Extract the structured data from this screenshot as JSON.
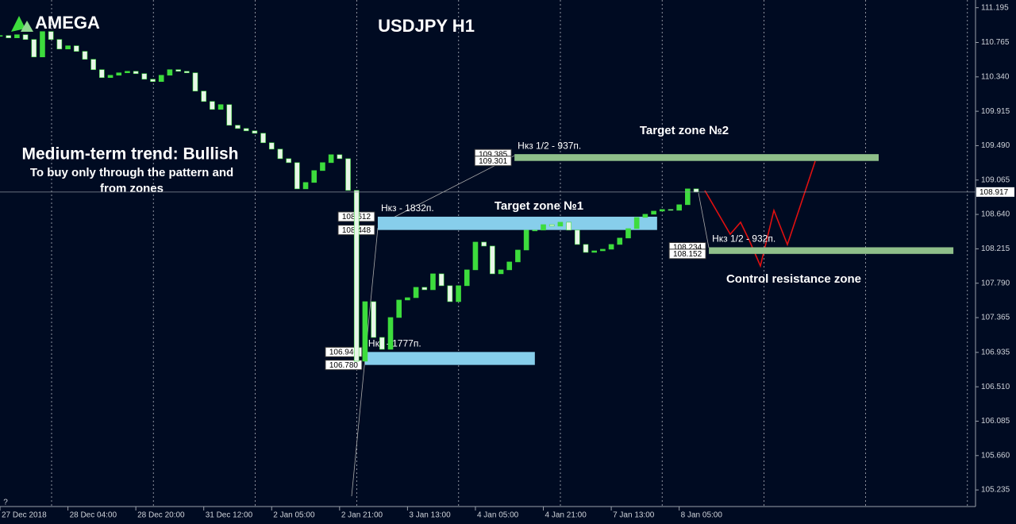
{
  "chart_data": {
    "type": "candlestick",
    "title": "USDJPY H1",
    "brand": "AMEGA",
    "annotations": [
      "Medium-term trend: Bullish",
      "To buy only through the pattern  and",
      "from zones",
      "Target zone №2",
      "Target zone №1",
      "Control resistance zone"
    ],
    "close": [
      110.851,
      110.822,
      110.861,
      110.802,
      110.586,
      110.9,
      110.802,
      110.684,
      110.724,
      110.655,
      110.557,
      110.429,
      110.331,
      110.36,
      110.39,
      110.409,
      110.38,
      110.311,
      110.282,
      110.36,
      110.429,
      110.409,
      110.39,
      110.164,
      110.036,
      109.938,
      109.997,
      109.742,
      109.702,
      109.673,
      109.643,
      109.526,
      109.447,
      109.329,
      109.28,
      108.956,
      109.035,
      109.182,
      109.28,
      109.378,
      109.329,
      108.937,
      106.826,
      107.562,
      107.12,
      106.973,
      107.366,
      107.582,
      107.611,
      107.739,
      107.709,
      107.906,
      107.759,
      107.562,
      107.759,
      107.955,
      108.298,
      108.249,
      107.906,
      107.955,
      108.053,
      108.2,
      108.446,
      108.446,
      108.514,
      108.495,
      108.544,
      108.446,
      108.269,
      108.171,
      108.19,
      108.21,
      108.269,
      108.348,
      108.465,
      108.603,
      108.642,
      108.681,
      108.701,
      108.691,
      108.76,
      108.956,
      108.917
    ],
    "up_color": "#3ddc3d",
    "down_color": "#e8f5e8",
    "xlim": [
      0,
      115
    ],
    "xticks": [
      {
        "value": 0,
        "label": "27 Dec 2018"
      },
      {
        "value": 8,
        "label": "28 Dec 04:00"
      },
      {
        "value": 16,
        "label": "28 Dec 20:00"
      },
      {
        "value": 24,
        "label": "31 Dec 12:00"
      },
      {
        "value": 32,
        "label": "2 Jan 05:00"
      },
      {
        "value": 40,
        "label": "2 Jan 21:00"
      },
      {
        "value": 48,
        "label": "3 Jan 13:00"
      },
      {
        "value": 56,
        "label": "4 Jan 05:00"
      },
      {
        "value": 64,
        "label": "4 Jan 21:00"
      },
      {
        "value": 72,
        "label": "7 Jan 13:00"
      },
      {
        "value": 80,
        "label": "8 Jan 05:00"
      }
    ],
    "ylim": [
      105.03,
      111.29
    ],
    "yticks": [
      111.195,
      110.765,
      {
        "value": 110.34,
        "label": "110.340"
      },
      109.915,
      {
        "value": 109.49,
        "label": "109.490"
      },
      109.065,
      {
        "value": 108.64,
        "label": "108.640"
      },
      108.215,
      {
        "value": 107.79,
        "label": "107.790"
      },
      107.365,
      106.935,
      {
        "value": 106.51,
        "label": "106.510"
      },
      106.085,
      {
        "value": 105.66,
        "label": "105.660"
      },
      105.235
    ],
    "zones": [
      {
        "label": "Нкз 1/2 - 937п.",
        "top": 109.385,
        "bottom": 109.301,
        "from": 60.6,
        "to": 103.5,
        "color": "#8fbf8a"
      },
      {
        "label": "Нкз - 1832п.",
        "top": 108.612,
        "bottom": 108.448,
        "from": 44.5,
        "to": 77.4,
        "color": "#87ceeb"
      },
      {
        "label": "Нкз - 1777п.",
        "top": {
          "value": 106.94,
          "label": "106.940"
        },
        "bottom": {
          "value": 106.78,
          "label": "106.780"
        },
        "from": 43,
        "to": 63,
        "color": "#87ceeb"
      },
      {
        "label": "Нкз 1/2 - 932п.",
        "top": 108.234,
        "bottom": 108.152,
        "from": 83.5,
        "to": 112.3,
        "color": "#8fbf8a"
      }
    ]
  }
}
